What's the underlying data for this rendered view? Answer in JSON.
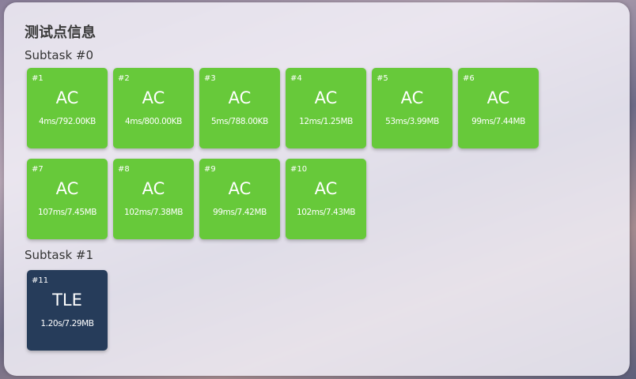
{
  "title": "测试点信息",
  "colors": {
    "AC": "#67c93a",
    "TLE": "#263c5a"
  },
  "subtasks": [
    {
      "label": "Subtask #0",
      "cases": [
        {
          "id": "#1",
          "status": "AC",
          "info": "4ms/792.00KB"
        },
        {
          "id": "#2",
          "status": "AC",
          "info": "4ms/800.00KB"
        },
        {
          "id": "#3",
          "status": "AC",
          "info": "5ms/788.00KB"
        },
        {
          "id": "#4",
          "status": "AC",
          "info": "12ms/1.25MB"
        },
        {
          "id": "#5",
          "status": "AC",
          "info": "53ms/3.99MB"
        },
        {
          "id": "#6",
          "status": "AC",
          "info": "99ms/7.44MB"
        },
        {
          "id": "#7",
          "status": "AC",
          "info": "107ms/7.45MB"
        },
        {
          "id": "#8",
          "status": "AC",
          "info": "102ms/7.38MB"
        },
        {
          "id": "#9",
          "status": "AC",
          "info": "99ms/7.42MB"
        },
        {
          "id": "#10",
          "status": "AC",
          "info": "102ms/7.43MB"
        }
      ]
    },
    {
      "label": "Subtask #1",
      "cases": [
        {
          "id": "#11",
          "status": "TLE",
          "info": "1.20s/7.29MB"
        }
      ]
    }
  ]
}
